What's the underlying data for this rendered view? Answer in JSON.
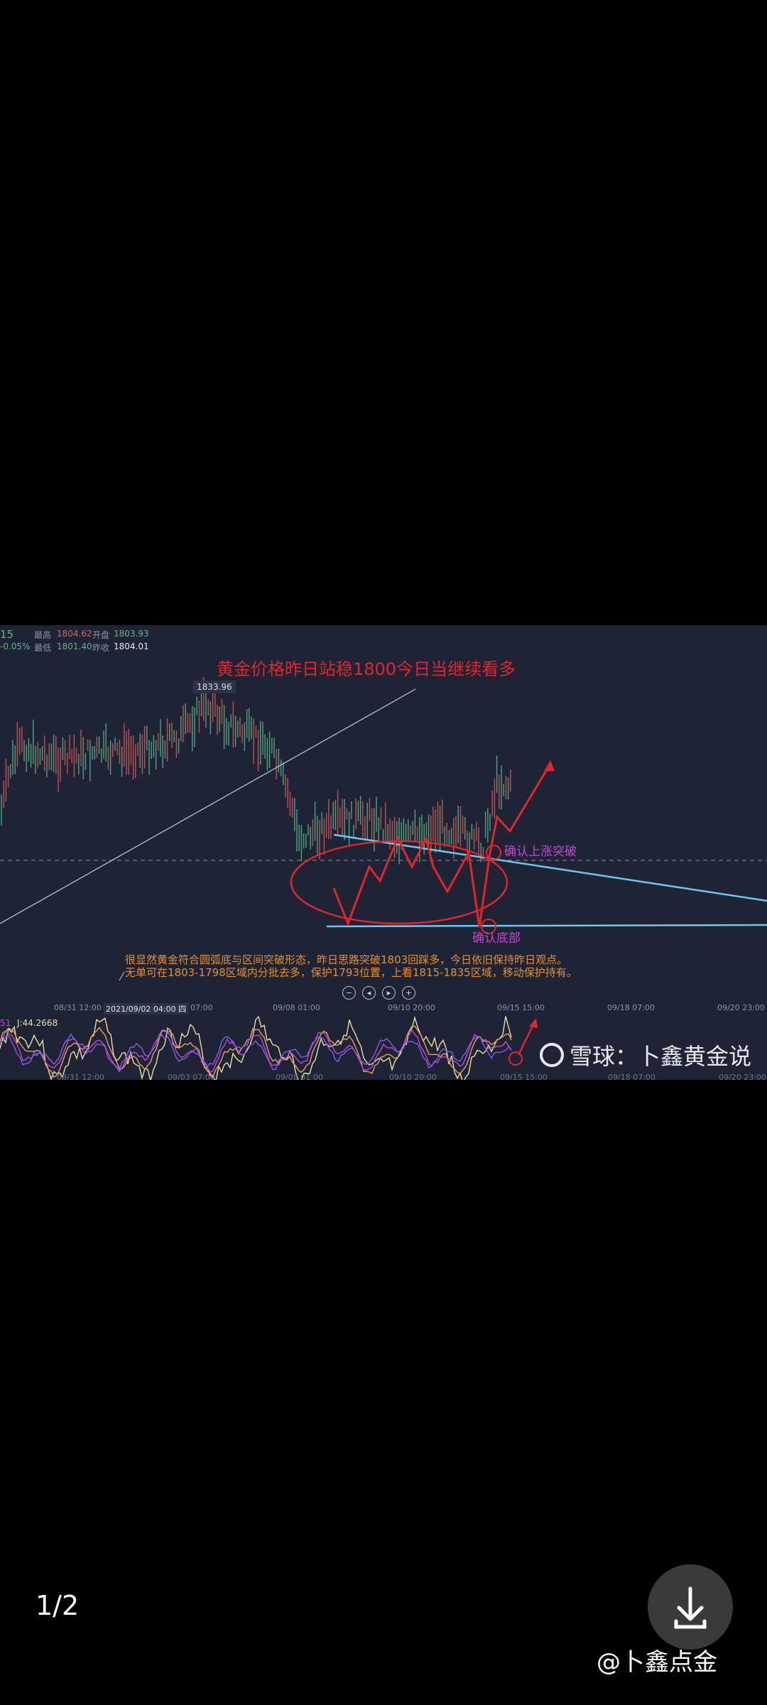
{
  "viewer": {
    "page_counter": "1/2",
    "download_icon": "download-icon",
    "author_watermark": "@卜鑫点金"
  },
  "chart_header": {
    "period_fragment": "15",
    "change": "-0.05%",
    "high_label": "最高",
    "high_value": "1804.62",
    "open_label": "开盘",
    "open_value": "1803.93",
    "low_label": "最低",
    "low_value": "1801.40",
    "prev_close_label": "昨收",
    "prev_close_value": "1804.01"
  },
  "chart": {
    "title": "黄金价格昨日站稳1800今日当继续看多",
    "peak_label": "1833.96",
    "breakout_tag": "确认上涨突破",
    "bottom_tag": "确认底部",
    "note_line1": "很显然黄金符合圆弧底与区间突破形态，昨日思路突破1803回踩多，今日依旧保持昨日观点。",
    "note_line2": "无单可在1803-1798区域内分批去多，保护1793位置，上看1815-1835区域，移动保护持有。",
    "time_ticks": [
      "08/31 12:00",
      "2021/09/02 04:00 四",
      "07:00",
      "09/08 01:00",
      "09/10 20:00",
      "09/15 15:00",
      "09/18 07:00",
      "09/20 23:00"
    ],
    "bottom_ticks": [
      "08/31 12:00",
      "09/03 07:00",
      "09/08 01:00",
      "09/10 20:00",
      "09/15 15:00",
      "09/18 07:00",
      "09/20 23:00"
    ],
    "controls": [
      "−",
      "◂",
      "▸",
      "+"
    ],
    "indicator_label_left": "51",
    "indicator_label": "J:44.2668",
    "watermark": "雪球：卜鑫黄金说",
    "colors": {
      "background": "#1e2436",
      "annotation_red": "#e0262a",
      "trendline_blue": "#6cc8f0",
      "note_orange": "#e8902c",
      "tag_purple": "#c04ad0",
      "up": "#e05a5a",
      "down": "#5ab88a"
    }
  }
}
